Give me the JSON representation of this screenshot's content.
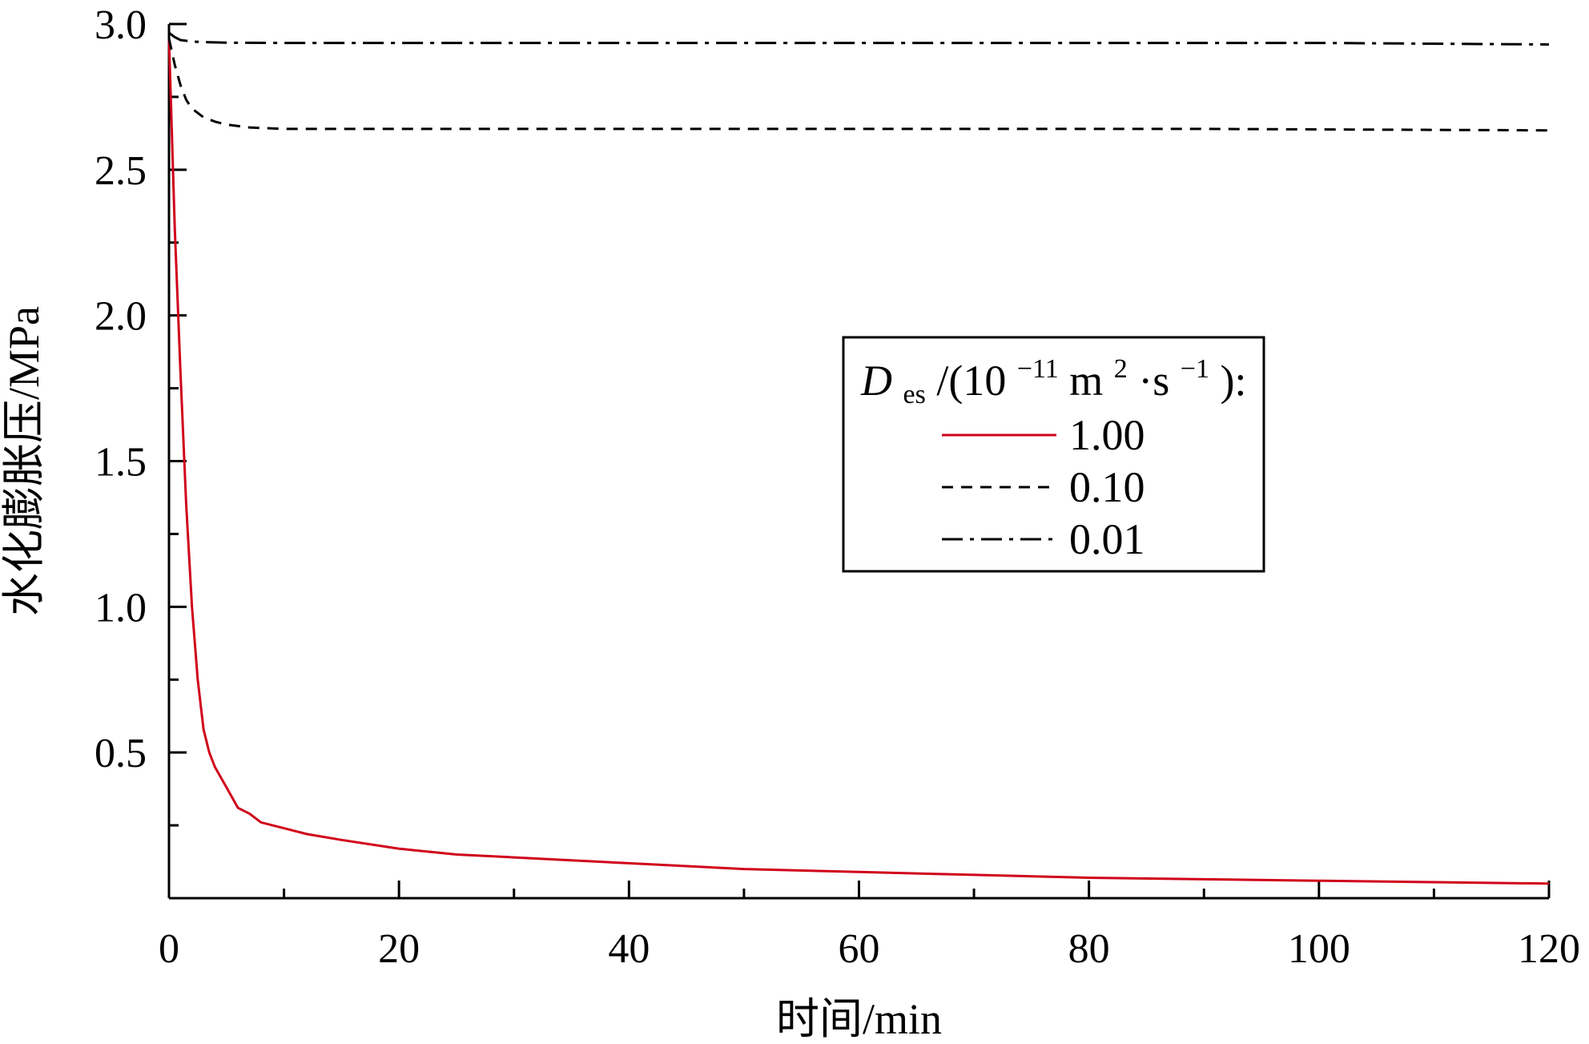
{
  "chart_data": {
    "type": "line",
    "title": "",
    "xlabel": "时间/min",
    "ylabel": "水化膨胀压/MPa",
    "xlim": [
      0,
      120
    ],
    "ylim": [
      0,
      3.0
    ],
    "x_ticks": [
      0,
      20,
      40,
      60,
      80,
      100,
      120
    ],
    "x_tick_labels": [
      "0",
      "20",
      "40",
      "60",
      "80",
      "100",
      "120"
    ],
    "y_ticks": [
      0.5,
      1.0,
      1.5,
      2.0,
      2.5,
      3.0
    ],
    "y_tick_labels": [
      "0.5",
      "1.0",
      "1.5",
      "2.0",
      "2.5",
      "3.0"
    ],
    "grid": false,
    "legend": {
      "position": "center-right",
      "title": {
        "symbol": "D",
        "subscript": "es",
        "prefix": "/(10",
        "exponent1": "−11",
        "unit1": " m",
        "exponent2": "2",
        "unit2": "·s",
        "exponent3": "−1",
        "suffix": "):"
      }
    },
    "series": [
      {
        "name": "1.00",
        "color": "#d0021b",
        "style": "solid",
        "x": [
          0,
          0.5,
          1,
          1.5,
          2,
          2.5,
          3,
          3.5,
          4,
          5,
          6,
          7,
          8,
          9,
          10,
          12,
          15,
          20,
          25,
          30,
          40,
          50,
          60,
          70,
          80,
          90,
          100,
          110,
          120
        ],
        "y": [
          2.95,
          2.3,
          1.8,
          1.35,
          1.0,
          0.75,
          0.58,
          0.5,
          0.45,
          0.38,
          0.31,
          0.29,
          0.26,
          0.25,
          0.24,
          0.22,
          0.2,
          0.17,
          0.15,
          0.14,
          0.12,
          0.1,
          0.09,
          0.08,
          0.07,
          0.065,
          0.06,
          0.055,
          0.05
        ]
      },
      {
        "name": "0.10",
        "color": "#000000",
        "style": "dashed",
        "x": [
          0,
          0.5,
          1,
          1.5,
          2,
          3,
          4,
          5,
          7,
          10,
          15,
          20,
          30,
          60,
          90,
          120
        ],
        "y": [
          2.95,
          2.86,
          2.79,
          2.74,
          2.71,
          2.68,
          2.665,
          2.655,
          2.645,
          2.64,
          2.64,
          2.64,
          2.64,
          2.64,
          2.64,
          2.635
        ]
      },
      {
        "name": "0.01",
        "color": "#000000",
        "style": "dashdot",
        "x": [
          0,
          0.5,
          1,
          2,
          3,
          5,
          10,
          20,
          40,
          60,
          80,
          100,
          120
        ],
        "y": [
          2.97,
          2.955,
          2.945,
          2.94,
          2.938,
          2.936,
          2.935,
          2.935,
          2.935,
          2.935,
          2.935,
          2.935,
          2.93
        ]
      }
    ]
  }
}
